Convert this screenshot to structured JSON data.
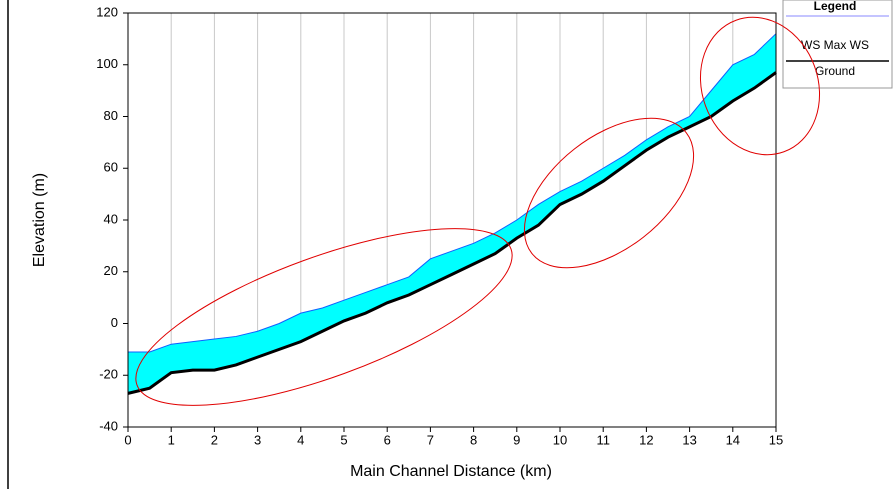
{
  "chart_data": {
    "type": "area",
    "xlabel": "Main Channel Distance (km)",
    "ylabel": "Elevation (m)",
    "x": [
      0,
      0.5,
      1,
      1.5,
      2,
      2.5,
      3,
      3.5,
      4,
      4.5,
      5,
      5.5,
      6,
      6.5,
      7,
      7.5,
      8,
      8.5,
      9,
      9.5,
      10,
      10.5,
      11,
      11.5,
      12,
      12.5,
      13,
      13.5,
      14,
      14.5,
      15
    ],
    "series": [
      {
        "name": "WS Max WS",
        "color": "#00ffff",
        "values": [
          -11,
          -11,
          -8,
          -7,
          -6,
          -5,
          -3,
          0,
          4,
          6,
          9,
          12,
          15,
          18,
          25,
          28,
          31,
          35,
          40,
          46,
          51,
          55,
          60,
          65,
          71,
          76,
          80,
          90,
          100,
          104,
          112
        ]
      },
      {
        "name": "Ground",
        "color": "#000000",
        "values": [
          -27,
          -25,
          -19,
          -18,
          -18,
          -16,
          -13,
          -10,
          -7,
          -3,
          1,
          4,
          8,
          11,
          15,
          19,
          23,
          27,
          33,
          38,
          46,
          50,
          55,
          61,
          67,
          72,
          76,
          80,
          86,
          91,
          97
        ]
      }
    ],
    "xlim": [
      0,
      15
    ],
    "xticks": [
      0,
      1,
      2,
      3,
      4,
      5,
      6,
      7,
      8,
      9,
      10,
      11,
      12,
      13,
      14,
      15
    ],
    "ylim": [
      -40,
      120
    ],
    "yticks": [
      -40,
      -20,
      0,
      20,
      40,
      60,
      80,
      100,
      120
    ],
    "xgrid": true,
    "legend_title": "Legend"
  }
}
